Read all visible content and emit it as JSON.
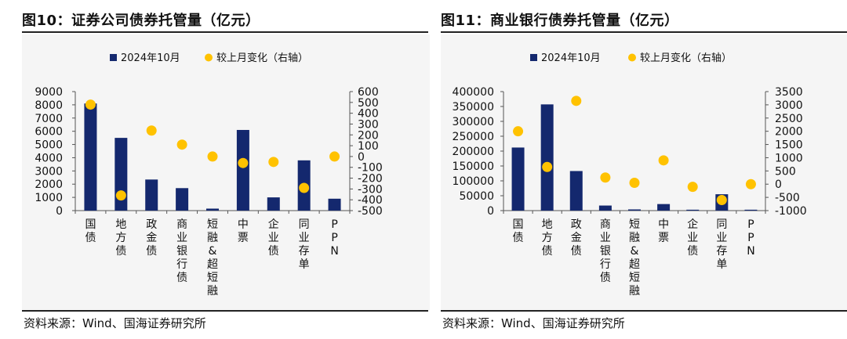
{
  "colors": {
    "bar": "#14286e",
    "dot": "#ffc200"
  },
  "chart_data": [
    {
      "type": "bar",
      "title": "图10：证券公司债券托管量（亿元）",
      "source": "资料来源：Wind、国海证券研究所",
      "categories": [
        "国债",
        "地方债",
        "政金债",
        "商业银行债",
        "短融&超短融",
        "中票",
        "企业债",
        "同业存单",
        "PPN"
      ],
      "series": [
        {
          "name": "2024年10月",
          "type": "bar",
          "axis": "left",
          "values": [
            8100,
            5500,
            2350,
            1700,
            150,
            6100,
            1000,
            3800,
            900
          ]
        },
        {
          "name": "较上月变化（右轴）",
          "type": "scatter",
          "axis": "right",
          "values": [
            480,
            -360,
            240,
            110,
            0,
            -60,
            -50,
            -290,
            0
          ]
        }
      ],
      "y_left": {
        "min": 0,
        "max": 9000,
        "ticks": [
          "0",
          "1000",
          "2000",
          "3000",
          "4000",
          "5000",
          "6000",
          "7000",
          "8000",
          "9000"
        ]
      },
      "y_right": {
        "min": -500,
        "max": 600,
        "ticks": [
          "-500",
          "-400",
          "-300",
          "-200",
          "-100",
          "0",
          "100",
          "200",
          "300",
          "400",
          "500",
          "600"
        ]
      },
      "legend": "top-center"
    },
    {
      "type": "bar",
      "title": "图11：商业银行债券托管量（亿元）",
      "source": "资料来源：Wind、国海证券研究所",
      "categories": [
        "国债",
        "地方债",
        "政金债",
        "商业银行债",
        "短融&超短融",
        "中票",
        "企业债",
        "同业存单",
        "PPN"
      ],
      "series": [
        {
          "name": "2024年10月",
          "type": "bar",
          "axis": "left",
          "values": [
            212000,
            357000,
            133000,
            17000,
            4000,
            22000,
            3000,
            55000,
            3000
          ]
        },
        {
          "name": "较上月变化（右轴）",
          "type": "scatter",
          "axis": "right",
          "values": [
            2000,
            650,
            3150,
            250,
            50,
            900,
            -100,
            -600,
            0
          ]
        }
      ],
      "y_left": {
        "min": 0,
        "max": 400000,
        "ticks": [
          "0",
          "50000",
          "100000",
          "150000",
          "200000",
          "250000",
          "300000",
          "350000",
          "400000"
        ]
      },
      "y_right": {
        "min": -1000,
        "max": 3500,
        "ticks": [
          "-1000",
          "-500",
          "0",
          "500",
          "1000",
          "1500",
          "2000",
          "2500",
          "3000",
          "3500"
        ]
      },
      "legend": "top-center"
    }
  ]
}
